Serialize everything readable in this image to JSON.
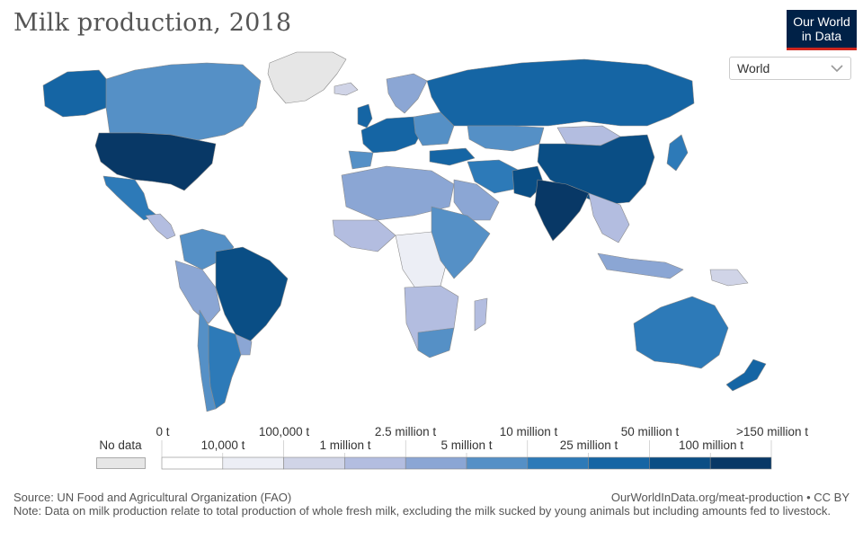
{
  "title": "Milk production, 2018",
  "logo": {
    "line1": "Our World",
    "line2": "in Data"
  },
  "region_selector": {
    "selected": "World",
    "icon": "chevron-down-icon"
  },
  "colors": {
    "no_data": "#e6e6e6",
    "bins": [
      "#ffffff",
      "#eceef5",
      "#d0d4e7",
      "#b3bde0",
      "#8ba6d4",
      "#5590c6",
      "#2d7ab8",
      "#1565a4",
      "#0a4e85",
      "#083866"
    ],
    "border": "#888888",
    "accent": "#ce261e",
    "logo_bg": "#002147"
  },
  "legend": {
    "no_data_label": "No data",
    "top_labels": [
      "0 t",
      "100,000 t",
      "2.5 million t",
      "10 million t",
      "50 million t",
      ">150 million t"
    ],
    "bottom_labels": [
      "10,000 t",
      "1 million t",
      "5 million t",
      "25 million t",
      "100 million t"
    ]
  },
  "footer": {
    "source": "Source: UN Food and Agricultural Organization (FAO)",
    "url": "OurWorldInData.org/meat-production • CC BY",
    "note": "Note: Data on milk production relate to total production of whole fresh milk, excluding the milk sucked by young animals but including amounts fed to livestock."
  }
}
